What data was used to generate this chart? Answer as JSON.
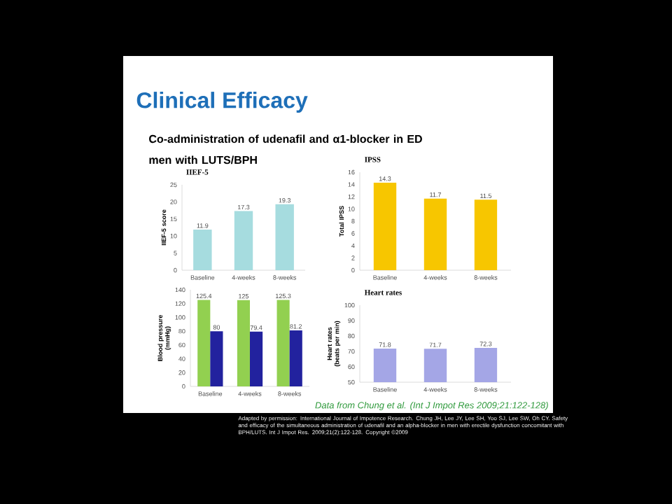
{
  "chart_data": [
    {
      "type": "other",
      "title": "Clinical Efficacy",
      "subtitle": "Co-administration of udenafil and α1-blocker in ED men with LUTS/BPH",
      "annotations": [
        "Data from Chung et al. (Int J Impot Res 2009;21:122-128)",
        "Adapted by permission: International Journal of Impotence Research. Chung JH, Lee JY, Lee SH, Yoo SJ, Lee SW, Oh CY. Safety and efficacy of the simultaneous administration of udenafil and an alpha-blocker in men with erectile dysfunction concomitant with BPH/LUTS. Int J Impot Res. 2009;21(2):122-128. Copyright ©2009"
      ]
    },
    {
      "type": "bar",
      "title": "IIEF-5",
      "ylabel": "IIEF-5 score",
      "categories": [
        "Baseline",
        "4-weeks",
        "8-weeks"
      ],
      "values": [
        11.9,
        17.3,
        19.3
      ],
      "color": "#a6dcdf",
      "ylim": [
        0,
        25
      ],
      "yticks": [
        0,
        5,
        10,
        15,
        20,
        25
      ],
      "data_labels": true
    },
    {
      "type": "bar",
      "title": "IPSS",
      "ylabel": "Total IPSS",
      "categories": [
        "Baseline",
        "4-weeks",
        "8-weeks"
      ],
      "values": [
        14.3,
        11.7,
        11.5
      ],
      "color": "#f7c600",
      "ylim": [
        0,
        16
      ],
      "yticks": [
        0,
        2,
        4,
        6,
        8,
        10,
        12,
        14,
        16
      ],
      "data_labels": true
    },
    {
      "type": "bar",
      "ylabel": "Blood pressure (mmHg)",
      "categories": [
        "Baseline",
        "4-weeks",
        "8-weeks"
      ],
      "series": [
        {
          "color": "#92d050",
          "values": [
            125.4,
            125,
            125.3
          ]
        },
        {
          "color": "#22229e",
          "values": [
            80,
            79.4,
            81.2
          ]
        }
      ],
      "ylim": [
        0,
        140
      ],
      "yticks": [
        0,
        20,
        40,
        60,
        80,
        100,
        120,
        140
      ],
      "data_labels": true
    },
    {
      "type": "bar",
      "title": "Heart rates",
      "ylabel": "Heart rates (beats per min)",
      "categories": [
        "Baseline",
        "4-weeks",
        "8-weeks"
      ],
      "values": [
        71.8,
        71.7,
        72.3
      ],
      "color": "#a4a6e6",
      "ylim": [
        50,
        100
      ],
      "yticks": [
        50,
        60,
        70,
        80,
        90,
        100
      ],
      "data_labels": true
    }
  ]
}
